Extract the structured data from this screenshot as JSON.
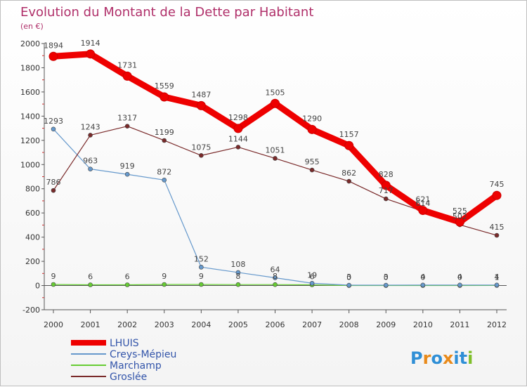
{
  "chart_data": {
    "type": "line",
    "title": "Evolution du Montant de la Dette par Habitant",
    "subtitle": "(en €)",
    "categories": [
      "2000",
      "2001",
      "2002",
      "2003",
      "2004",
      "2005",
      "2006",
      "2007",
      "2008",
      "2009",
      "2010",
      "2011",
      "2012"
    ],
    "ylim": [
      -200,
      2000
    ],
    "yticks": [
      -200,
      0,
      200,
      400,
      600,
      800,
      1000,
      1200,
      1400,
      1600,
      1800,
      2000
    ],
    "grid": false,
    "legend_placement": "bottom-left",
    "series": [
      {
        "name": "LHUIS",
        "color": "#ee0000",
        "values": [
          1894,
          1914,
          1731,
          1559,
          1487,
          1298,
          1505,
          1290,
          1157,
          828,
          621,
          525,
          745
        ],
        "labels": [
          "1894",
          "1914",
          "1731",
          "1559",
          "1487",
          "1298",
          "1505",
          "1290",
          "1157",
          "828",
          "621",
          "525",
          "745"
        ]
      },
      {
        "name": "Creys-Mépieu",
        "color": "#6699cc",
        "values": [
          1293,
          963,
          919,
          872,
          152,
          108,
          64,
          19,
          3,
          3,
          4,
          4,
          4
        ],
        "labels": [
          "1293",
          "963",
          "919",
          "872",
          "152",
          "108",
          "64",
          "19",
          "3",
          "3",
          "4",
          "4",
          "4"
        ]
      },
      {
        "name": "Marchamp",
        "color": "#66cc33",
        "values": [
          9,
          6,
          6,
          9,
          9,
          8,
          8,
          6,
          0,
          0,
          0,
          0,
          1
        ],
        "labels": [
          "9",
          "6",
          "6",
          "9",
          "9",
          "8",
          "8",
          "6",
          "0",
          "0",
          "0",
          "0",
          "1"
        ]
      },
      {
        "name": "Groslée",
        "color": "#7a2a2a",
        "values": [
          786,
          1243,
          1317,
          1199,
          1075,
          1144,
          1051,
          955,
          862,
          717,
          614,
          502,
          415
        ],
        "labels": [
          "786",
          "1243",
          "1317",
          "1199",
          "1075",
          "1144",
          "1051",
          "955",
          "862",
          "717",
          "614",
          "502",
          "415"
        ]
      }
    ]
  },
  "brand": "Proxiti"
}
